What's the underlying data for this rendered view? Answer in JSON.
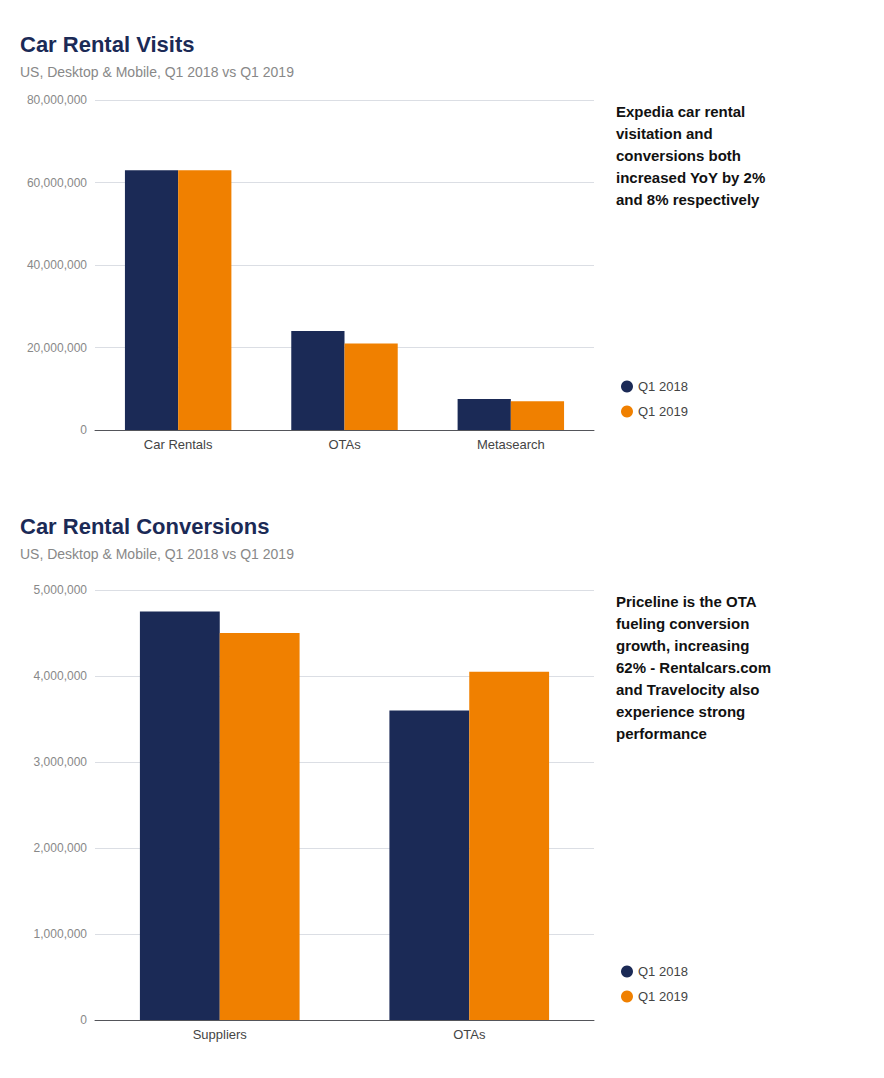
{
  "chart_data": [
    {
      "type": "bar",
      "title": "Car Rental Visits",
      "subtitle": "US, Desktop & Mobile, Q1 2018 vs Q1 2019",
      "categories": [
        "Car Rentals",
        "OTAs",
        "Metasearch"
      ],
      "series": [
        {
          "name": "Q1 2018",
          "color": "#1b2a56",
          "values": [
            63000000,
            24000000,
            7500000
          ]
        },
        {
          "name": "Q1 2019",
          "color": "#f08000",
          "values": [
            63000000,
            21000000,
            7000000
          ]
        }
      ],
      "ylim": [
        0,
        80000000
      ],
      "yticks": [
        0,
        {
          "value": 20000000,
          "label": "20,000,000"
        },
        {
          "value": 40000000,
          "label": "40,000,000"
        },
        {
          "value": 60000000,
          "label": "60,000,000"
        },
        {
          "value": 80000000,
          "label": "80,000,000"
        }
      ],
      "grid": true,
      "legend": "right",
      "annotations": [
        "Expedia car rental\nvisitation and\nconversions both\nincreased YoY by 2%\nand 8% respectively"
      ]
    },
    {
      "type": "bar",
      "title": "Car Rental Conversions",
      "subtitle": "US, Desktop & Mobile, Q1 2018 vs Q1 2019",
      "categories": [
        "Suppliers",
        "OTAs"
      ],
      "series": [
        {
          "name": "Q1 2018",
          "color": "#1b2a56",
          "values": [
            4750000,
            3600000
          ]
        },
        {
          "name": "Q1 2019",
          "color": "#f08000",
          "values": [
            4500000,
            4050000
          ]
        }
      ],
      "ylim": [
        0,
        5000000
      ],
      "yticks": [
        0,
        {
          "value": 1000000,
          "label": "1,000,000"
        },
        {
          "value": 2000000,
          "label": "2,000,000"
        },
        {
          "value": 3000000,
          "label": "3,000,000"
        },
        {
          "value": 4000000,
          "label": "4,000,000"
        },
        {
          "value": 5000000,
          "label": "5,000,000"
        }
      ],
      "grid": true,
      "legend": "right",
      "annotations": [
        "Priceline is the OTA\nfueling conversion\ngrowth, increasing\n62% - Rentalcars.com\nand Travelocity also\nexperience strong\nperformance"
      ]
    }
  ]
}
